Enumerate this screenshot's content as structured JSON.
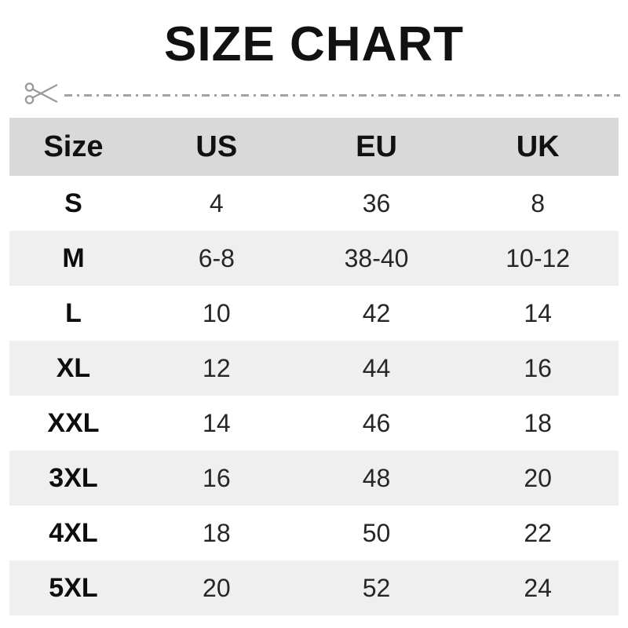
{
  "page": {
    "title": "SIZE CHART"
  },
  "cut_line": {
    "icon": "scissors-icon"
  },
  "colors": {
    "title_text": "#111111",
    "header_bg": "#d9d9d9",
    "row_alt_bg": "#efefef",
    "row_bg": "#ffffff",
    "value_text": "#262626",
    "cut_line_gray": "#a3a3a3"
  },
  "chart_data": {
    "type": "table",
    "title": "SIZE CHART",
    "columns": [
      "Size",
      "US",
      "EU",
      "UK"
    ],
    "rows": [
      [
        "S",
        "4",
        "36",
        "8"
      ],
      [
        "M",
        "6-8",
        "38-40",
        "10-12"
      ],
      [
        "L",
        "10",
        "42",
        "14"
      ],
      [
        "XL",
        "12",
        "44",
        "16"
      ],
      [
        "XXL",
        "14",
        "46",
        "18"
      ],
      [
        "3XL",
        "16",
        "48",
        "20"
      ],
      [
        "4XL",
        "18",
        "50",
        "22"
      ],
      [
        "5XL",
        "20",
        "52",
        "24"
      ]
    ],
    "layout": {
      "header_background": "#d9d9d9",
      "alternating_row_background": "#efefef",
      "bold_first_column": true,
      "grid": false
    }
  }
}
